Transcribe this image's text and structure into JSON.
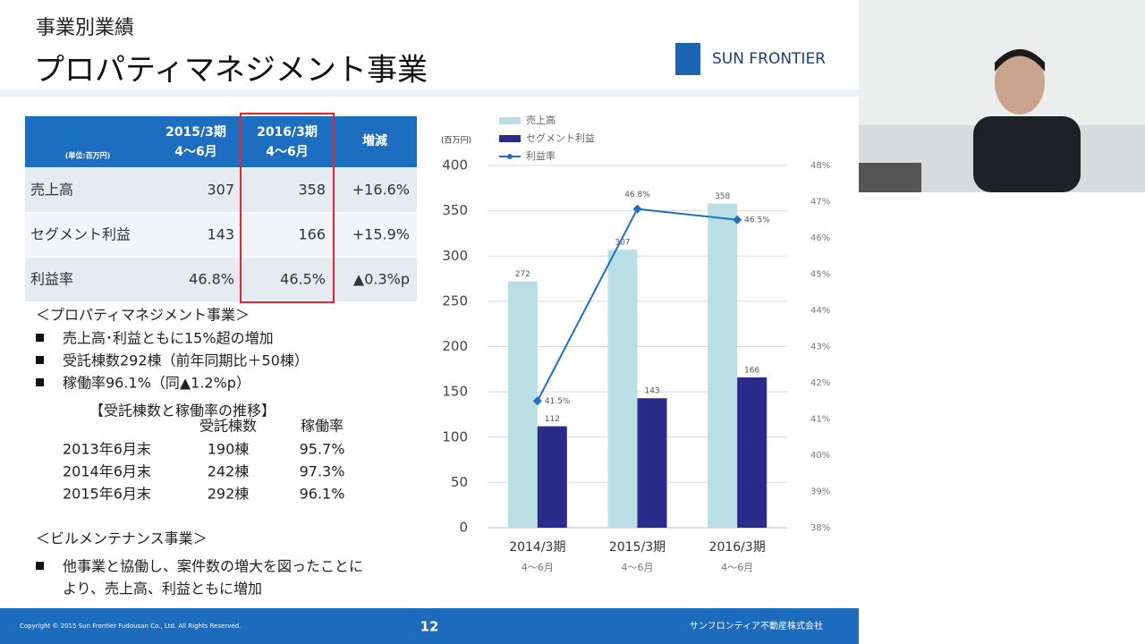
{
  "slide": {
    "section": "事業別業績",
    "title": "プロパティマネジメント事業",
    "logo": "SUN FRONTIER"
  },
  "table": {
    "header": [
      [
        "(単位:百万円)"
      ],
      [
        "2015/3期",
        "4〜6月"
      ],
      [
        "2016/3期",
        "4〜6月"
      ],
      [
        "増減"
      ]
    ],
    "rows": [
      [
        "売上高",
        "307",
        "358",
        "+16.6%"
      ],
      [
        "セグメント利益",
        "143",
        "166",
        "+15.9%"
      ],
      [
        "利益率",
        "46.8%",
        "46.5%",
        "▲0.3%p"
      ]
    ]
  },
  "notes": {
    "pm_heading": "＜プロパティマネジメント事業＞",
    "pm_bullets": [
      "売上高･利益ともに15%超の増加",
      "受託棟数292棟（前年同期比＋50棟）",
      "稼働率96.1%（同▲1.2%p）"
    ],
    "sub_title": "【受託棟数と稼働率の推移】",
    "sub_header": [
      "受託棟数",
      "稼働率"
    ],
    "sub_rows": [
      [
        "2013年6月末",
        "190棟",
        "95.7%"
      ],
      [
        "2014年6月末",
        "242棟",
        "97.3%"
      ],
      [
        "2015年6月末",
        "292棟",
        "96.1%"
      ]
    ],
    "bm_heading": "＜ビルメンテナンス事業＞",
    "bm_bullet_lines": [
      "他事業と協働し、案件数の増大を図ったことに",
      "より、売上高、利益ともに増加"
    ]
  },
  "footer": {
    "copyright": "Copyright © 2015 Sun Frontier Fudousan Co., Ltd. All Rights Reserved.",
    "page": "12",
    "company": "サンフロンティア不動産株式会社"
  },
  "chart_data": {
    "type": "bar",
    "y_label": "(百万円)",
    "categories": [
      "2014/3期",
      "2015/3期",
      "2016/3期"
    ],
    "category_sublabels": [
      "4〜6月",
      "4〜6月",
      "4〜6月"
    ],
    "series": [
      {
        "name": "売上高",
        "type": "bar",
        "color": "#b9dfe5",
        "values": [
          272,
          307,
          358
        ]
      },
      {
        "name": "セグメント利益",
        "type": "bar",
        "color": "#2b2b8c",
        "values": [
          112,
          143,
          166
        ]
      },
      {
        "name": "利益率",
        "type": "line",
        "axis": "y2",
        "color": "#1e6fc8",
        "values": [
          41.5,
          46.8,
          46.5
        ],
        "value_labels": [
          "41.5%",
          "46.8%",
          "46.5%"
        ]
      }
    ],
    "ylim": [
      0,
      400
    ],
    "yticks": [
      0,
      50,
      100,
      150,
      200,
      250,
      300,
      350,
      400
    ],
    "y2lim": [
      38,
      48
    ],
    "y2ticks": [
      {
        "value": 38,
        "label": "38%"
      },
      {
        "value": 39,
        "label": "39%"
      },
      {
        "value": 40,
        "label": "40%"
      },
      {
        "value": 41,
        "label": "41%"
      },
      {
        "value": 42,
        "label": "42%"
      },
      {
        "value": 43,
        "label": "43%"
      },
      {
        "value": 44,
        "label": "44%"
      },
      {
        "value": 45,
        "label": "45%"
      },
      {
        "value": 46,
        "label": "46%"
      },
      {
        "value": 47,
        "label": "47%"
      },
      {
        "value": 48,
        "label": "48%"
      }
    ],
    "grid": true
  }
}
